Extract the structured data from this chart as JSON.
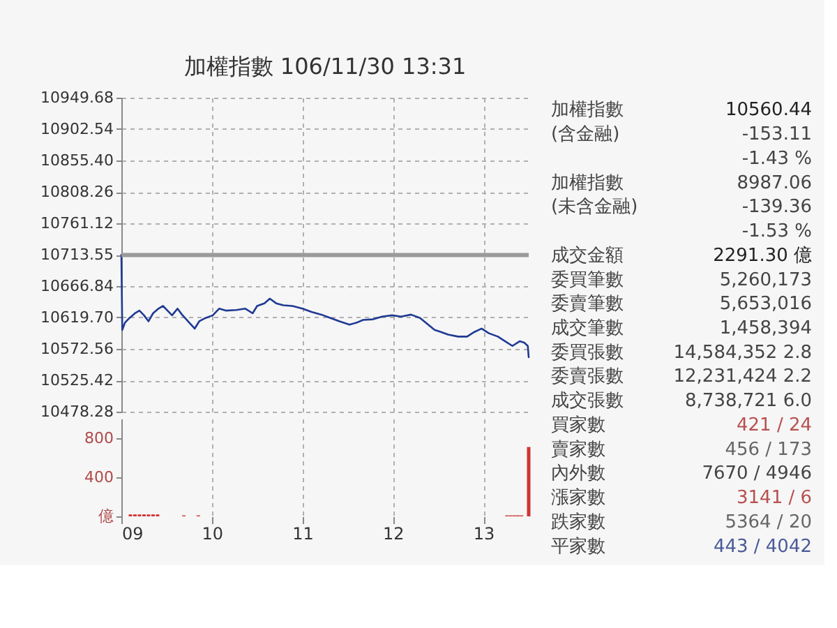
{
  "chart_data": [
    {
      "type": "line",
      "title": "加權指數 106/11/30 13:31",
      "color": "#1f3a93",
      "marker": "none",
      "line_style": "solid",
      "grid": true,
      "tick_labels": "y",
      "x": [
        9.0,
        9.01,
        9.04,
        9.09,
        9.15,
        9.2,
        9.25,
        9.3,
        9.35,
        9.41,
        9.46,
        9.51,
        9.56,
        9.62,
        9.67,
        9.75,
        9.81,
        9.86,
        9.93,
        10.01,
        10.08,
        10.16,
        10.27,
        10.37,
        10.45,
        10.5,
        10.58,
        10.64,
        10.71,
        10.79,
        10.89,
        11.0,
        11.1,
        11.21,
        11.31,
        11.41,
        11.52,
        11.6,
        11.67,
        11.78,
        11.88,
        11.99,
        12.09,
        12.2,
        12.3,
        12.38,
        12.46,
        12.53,
        12.61,
        12.72,
        12.82,
        12.9,
        12.98,
        13.06,
        13.16,
        13.24,
        13.32,
        13.4,
        13.45,
        13.49,
        13.5
      ],
      "values": [
        10714,
        10601,
        10612,
        10619,
        10626,
        10630,
        10623,
        10614,
        10626,
        10633,
        10637,
        10630,
        10623,
        10633,
        10624,
        10612,
        10603,
        10614,
        10619,
        10623,
        10633,
        10630,
        10631,
        10633,
        10626,
        10637,
        10641,
        10648,
        10641,
        10638,
        10637,
        10633,
        10628,
        10624,
        10619,
        10614,
        10609,
        10612,
        10616,
        10617,
        10621,
        10623,
        10621,
        10624,
        10619,
        10610,
        10601,
        10598,
        10594,
        10591,
        10591,
        10598,
        10603,
        10596,
        10591,
        10584,
        10577,
        10584,
        10582,
        10577,
        10560
      ],
      "xlim": [
        9,
        13.5
      ],
      "xticks": [
        10,
        11,
        12,
        13
      ],
      "ylim": [
        10478.28,
        10949.68
      ],
      "yticks": [
        10478.28,
        10525.42,
        10572.56,
        {
          "value": 10619.7,
          "label": "10619.70"
        },
        10666.84,
        10713.55,
        10761.12,
        10808.26,
        {
          "value": 10855.4,
          "label": "10855.40"
        },
        10902.54,
        10949.68
      ],
      "ref_lines": [
        {
          "axis": "y",
          "value": 10713.55,
          "color": "#9a9a9a"
        }
      ]
    },
    {
      "type": "bar",
      "color": "#d03535",
      "grid": "x",
      "x": [
        9.1,
        9.15,
        9.2,
        9.25,
        9.3,
        9.35,
        9.4,
        9.69,
        9.85,
        13.26,
        13.3,
        13.34,
        13.38,
        13.42,
        13.5
      ],
      "values": [
        20,
        20,
        20,
        20,
        20,
        20,
        20,
        10,
        10,
        10,
        10,
        10,
        10,
        10,
        710
      ],
      "xlim": [
        9,
        13.5
      ],
      "xticks": [
        {
          "value": 9,
          "label": "09"
        },
        10,
        11,
        12,
        13
      ],
      "ylim": [
        0,
        1000
      ],
      "yticks": [
        {
          "value": 0,
          "label": "億"
        },
        400,
        800
      ]
    },
    {
      "type": "other",
      "categories": [
        "加權指數",
        "(含金融)",
        null,
        "加權指數",
        "(未含金融)",
        null,
        "成交金額",
        "委買筆數",
        "委賣筆數",
        "成交筆數",
        "委買張數",
        "委賣張數",
        "成交張數",
        "買家數",
        "賣家數",
        "內外數",
        "漲家數",
        "跌家數",
        "平家數"
      ],
      "value_labels": [
        "10560.44",
        "-153.11",
        "-1.43 %",
        "8987.06",
        "-139.36",
        "-1.53 %",
        "2291.30 億",
        "5,260,173",
        "5,653,016",
        "1,458,394",
        "14,584,352 2.8",
        "12,231,424 2.2",
        "8,738,721 6.0",
        "421 / 24",
        "456 / 173",
        "7670 / 4946",
        "3141 / 6",
        "5364 / 20",
        "443 / 4042"
      ],
      "colors": [
        "#222222",
        "#444444",
        "#444444",
        "#444444",
        "#444444",
        "#444444",
        "#222222",
        "#444444",
        "#444444",
        "#444444",
        "#444444",
        "#444444",
        "#444444",
        "#b85050",
        "#666666",
        "#444444",
        "#b85050",
        "#666666",
        "#4a5a99"
      ]
    }
  ]
}
